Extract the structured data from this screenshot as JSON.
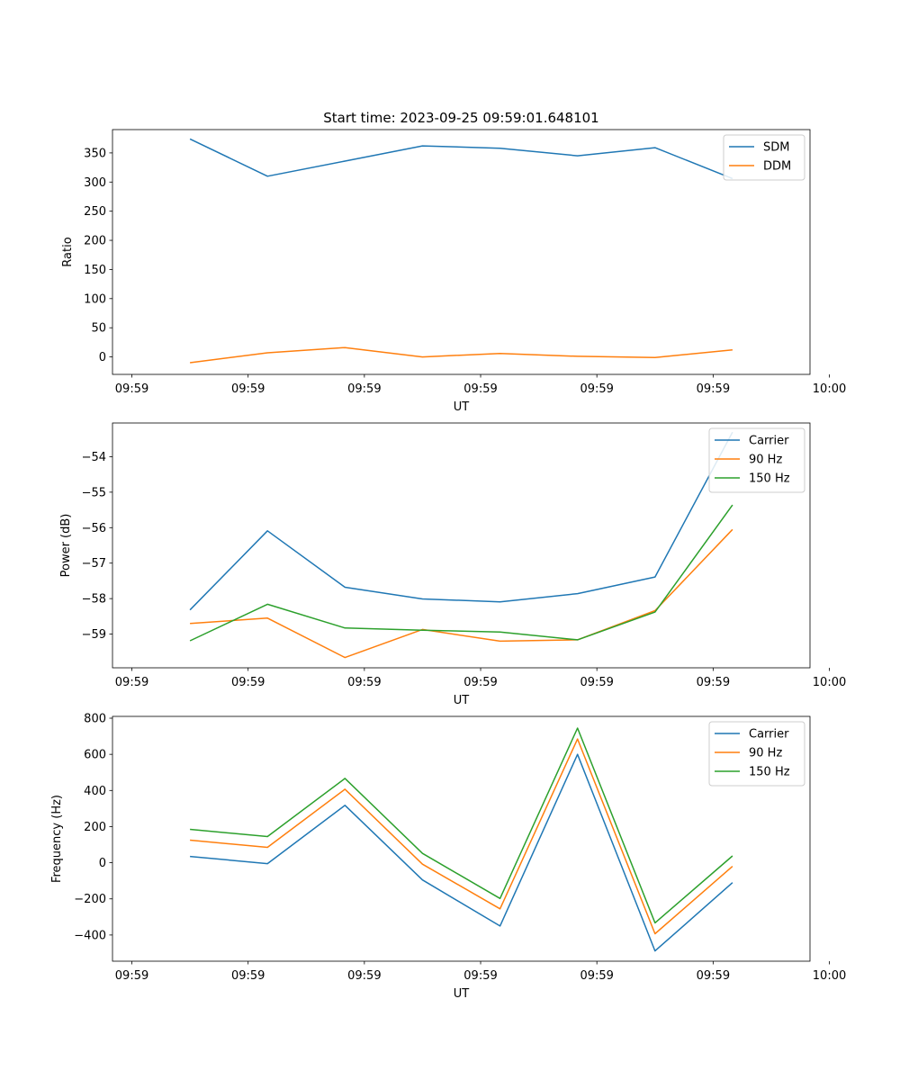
{
  "chart_data": [
    {
      "type": "line",
      "title": "Start time: 2023-09-25 09:59:01.648101",
      "xlabel": "UT",
      "ylabel": "Ratio",
      "xlim": [
        0,
        9
      ],
      "x_ticks": [
        0.25,
        1.75,
        3.25,
        4.75,
        6.25,
        7.75,
        9.25
      ],
      "x_tick_labels": [
        "09:59",
        "09:59",
        "09:59",
        "09:59",
        "09:59",
        "09:59",
        "10:00"
      ],
      "ylim": [
        -30,
        390
      ],
      "y_ticks": [
        0,
        50,
        100,
        150,
        200,
        250,
        300,
        350
      ],
      "y_tick_labels": [
        "0",
        "50",
        "100",
        "150",
        "200",
        "250",
        "300",
        "350"
      ],
      "x": [
        1,
        2,
        3,
        4,
        5,
        6,
        7,
        8
      ],
      "legend_loc": "upper right",
      "series": [
        {
          "name": "SDM",
          "color": "#1f77b4",
          "values": [
            374,
            310,
            336,
            362,
            358,
            345,
            359,
            306
          ]
        },
        {
          "name": "DDM",
          "color": "#ff7f0e",
          "values": [
            -10,
            7,
            16,
            0,
            6,
            1,
            -1,
            12
          ]
        }
      ]
    },
    {
      "type": "line",
      "title": "",
      "xlabel": "UT",
      "ylabel": "Power (dB)",
      "xlim": [
        0,
        9
      ],
      "x_ticks": [
        0.25,
        1.75,
        3.25,
        4.75,
        6.25,
        7.75,
        9.25
      ],
      "x_tick_labels": [
        "09:59",
        "09:59",
        "09:59",
        "09:59",
        "09:59",
        "09:59",
        "10:00"
      ],
      "ylim": [
        -59.95,
        -53.05
      ],
      "y_ticks": [
        -59,
        -58,
        -57,
        -56,
        -55,
        -54
      ],
      "y_tick_labels": [
        "−59",
        "−58",
        "−57",
        "−56",
        "−55",
        "−54"
      ],
      "x": [
        1,
        2,
        3,
        4,
        5,
        6,
        7,
        8
      ],
      "legend_loc": "upper right",
      "series": [
        {
          "name": "Carrier",
          "color": "#1f77b4",
          "values": [
            -58.32,
            -56.09,
            -57.68,
            -58.01,
            -58.09,
            -57.86,
            -57.39,
            -53.31
          ]
        },
        {
          "name": "90 Hz",
          "color": "#ff7f0e",
          "values": [
            -58.7,
            -58.55,
            -59.66,
            -58.87,
            -59.2,
            -59.16,
            -58.34,
            -56.05
          ]
        },
        {
          "name": "150 Hz",
          "color": "#2ca02c",
          "values": [
            -59.19,
            -58.16,
            -58.83,
            -58.89,
            -58.94,
            -59.16,
            -58.38,
            -55.36
          ]
        }
      ]
    },
    {
      "type": "line",
      "title": "",
      "xlabel": "UT",
      "ylabel": "Frequency (Hz)",
      "xlim": [
        0,
        9
      ],
      "x_ticks": [
        0.25,
        1.75,
        3.25,
        4.75,
        6.25,
        7.75,
        9.25
      ],
      "x_tick_labels": [
        "09:59",
        "09:59",
        "09:59",
        "09:59",
        "09:59",
        "09:59",
        "10:00"
      ],
      "ylim": [
        -545,
        810
      ],
      "y_ticks": [
        -400,
        -200,
        0,
        200,
        400,
        600,
        800
      ],
      "y_tick_labels": [
        "−400",
        "−200",
        "0",
        "200",
        "400",
        "600",
        "800"
      ],
      "x": [
        1,
        2,
        3,
        4,
        5,
        6,
        7,
        8
      ],
      "legend_loc": "upper right",
      "series": [
        {
          "name": "Carrier",
          "color": "#1f77b4",
          "values": [
            35,
            -5,
            318,
            -95,
            -350,
            600,
            -488,
            -110
          ]
        },
        {
          "name": "90 Hz",
          "color": "#ff7f0e",
          "values": [
            125,
            85,
            407,
            -8,
            -255,
            685,
            -393,
            -20
          ]
        },
        {
          "name": "150 Hz",
          "color": "#2ca02c",
          "values": [
            185,
            145,
            467,
            52,
            -198,
            745,
            -333,
            38
          ]
        }
      ]
    }
  ]
}
